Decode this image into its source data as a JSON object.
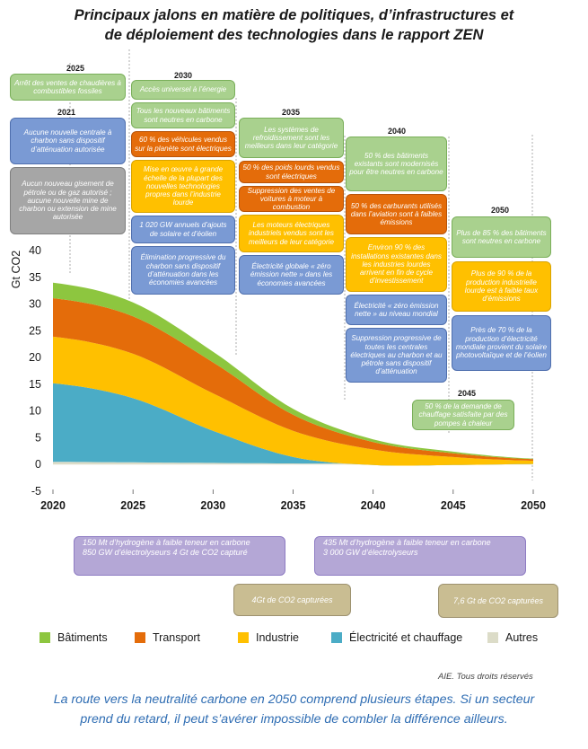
{
  "title": {
    "line1": "Principaux jalons en matière de politiques, d’infrastructures et",
    "line2": "de déploiement des technologies dans le rapport ZEN"
  },
  "chart_data": {
    "type": "area",
    "x": [
      2020,
      2025,
      2030,
      2035,
      2040,
      2045,
      2050
    ],
    "ylabel": "Gt CO2",
    "ylim": [
      -5,
      40
    ],
    "yticks": [
      -5,
      0,
      5,
      10,
      15,
      20,
      25,
      30,
      35,
      40
    ],
    "xticks": [
      "2020",
      "2025",
      "2030",
      "2035",
      "2040",
      "2045",
      "2050"
    ],
    "stack_order": [
      "Autres",
      "Électricité et chauffage",
      "Industrie",
      "Transport",
      "Bâtiments"
    ],
    "series": [
      {
        "name": "Autres",
        "color": "#dcdcc8",
        "values": [
          0.5,
          0.4,
          0.3,
          0.2,
          0.2,
          0.3,
          0.4
        ]
      },
      {
        "name": "Électricité et chauffage",
        "color": "#4bacc6",
        "values": [
          14.7,
          12.0,
          6.0,
          1.2,
          -0.3,
          -0.4,
          -0.3
        ]
      },
      {
        "name": "Industrie",
        "color": "#ffc000",
        "values": [
          8.7,
          8.3,
          7.0,
          4.9,
          2.9,
          1.5,
          0.6
        ]
      },
      {
        "name": "Transport",
        "color": "#e46c0a",
        "values": [
          7.2,
          7.0,
          5.8,
          3.0,
          1.4,
          0.7,
          0.3
        ]
      },
      {
        "name": "Bâtiments",
        "color": "#8dc63f",
        "values": [
          2.9,
          2.6,
          2.0,
          1.1,
          0.5,
          0.3,
          0.1
        ]
      }
    ],
    "legend_position": "bottom"
  },
  "legend": {
    "items": [
      {
        "label": "Bâtiments",
        "color": "#8dc63f"
      },
      {
        "label": "Transport",
        "color": "#e46c0a"
      },
      {
        "label": "Industrie",
        "color": "#ffc000"
      },
      {
        "label": "Électricité et chauffage",
        "color": "#4bacc6"
      },
      {
        "label": "Autres",
        "color": "#dcdcc8"
      }
    ]
  },
  "milestones": {
    "year_2021": "2021",
    "year_2025": "2025",
    "year_2030": "2030",
    "year_2035": "2035",
    "year_2040": "2040",
    "year_2045": "2045",
    "year_2050": "2050",
    "m2025_1": "Arrêt des ventes de chaudières à combustibles fossiles",
    "m2021_1": "Aucune nouvelle centrale à charbon sans dispositif d’atténuation autorisée",
    "m2021_2": "Aucun nouveau gisement de pétrole ou de gaz autorisé ; aucune nouvelle mine de charbon ou extension de mine autorisée",
    "m2030_1": "Accès universel à l’énergie",
    "m2030_2": "Tous les nouveaux bâtiments sont neutres en carbone",
    "m2030_3": "60 % des véhicules vendus sur la planète sont électriques",
    "m2030_4": "Mise en œuvre à grande échelle de la plupart des nouvelles technologies propres dans l’industrie lourde",
    "m2030_5": "1 020 GW annuels d’ajouts de solaire et d’éolien",
    "m2030_6": "Élimination progressive du charbon sans dispositif d’atténuation dans les économies avancées",
    "m2035_1": "Les systèmes de refroidissement sont les meilleurs dans leur catégorie",
    "m2035_2": "50 % des poids lourds vendus sont électriques",
    "m2035_3": "Suppression des ventes de voitures à moteur à combustion",
    "m2035_4": "Les moteurs électriques industriels vendus sont les meilleurs de leur catégorie",
    "m2035_5": "Électricité globale « zéro émission nette » dans les économies avancées",
    "m2040_1": "50 % des bâtiments existants sont modernisés pour être neutres en carbone",
    "m2040_2": "50 % des carburants utilisés dans l’aviation sont à faibles émissions",
    "m2040_3": "Environ 90 % des installations existantes dans les industries lourdes arrivent en fin de cycle d’investissement",
    "m2040_4": "Électricité « zéro émission nette » au niveau mondial",
    "m2040_5": "Suppression progressive de toutes les centrales électriques au charbon et au pétrole sans dispositif d’atténuation",
    "m2045_1": "50 % de la demande de chauffage satisfaite par des pompes à chaleur",
    "m2050_1": "Plus de 85 % des bâtiments sont neutres en carbone",
    "m2050_2": "Plus de 90 % de la production industrielle lourde est à faible taux d’émissions",
    "m2050_3": "Près de 70 % de la production d’électricité mondiale provient du solaire photovoltaïque et de l’éolien",
    "b2030_1": "150 Mt d’hydrogène à faible teneur en carbone",
    "b2030_2": "850 GW d’électrolyseurs 4 Gt de CO2 capturé",
    "b2035": "4Gt de CO2 capturées",
    "b2045_1": "435 Mt d’hydrogène à faible teneur en carbone",
    "b2045_2": "3 000 GW d’électrolyseurs",
    "b2050": "7,6 Gt de CO2 capturées"
  },
  "credit": "AIE. Tous droits réservés",
  "caption": {
    "line1": "La route vers la neutralité carbone en 2050 comprend plusieurs étapes. Si un secteur",
    "line2": "prend du retard, il peut s’avérer impossible de combler la différence ailleurs."
  }
}
